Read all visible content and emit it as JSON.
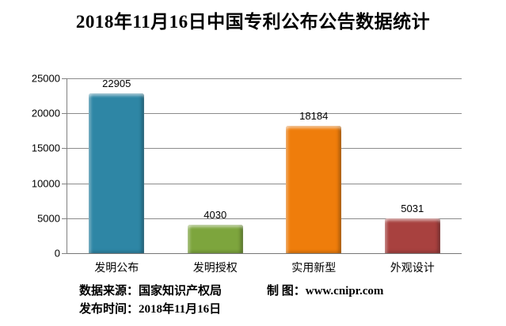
{
  "chart_data": {
    "type": "bar",
    "title": "2018年11月16日中国专利公布公告数据统计",
    "categories": [
      "发明公布",
      "发明授权",
      "实用新型",
      "外观设计"
    ],
    "values": [
      22905,
      4030,
      18184,
      5031
    ],
    "value_labels": [
      "22905",
      "4030",
      "18184",
      "5031"
    ],
    "bar_colors": [
      "#2e86a5",
      "#7da53d",
      "#ef7d0b",
      "#a8413f"
    ],
    "xlabel": "",
    "ylabel": "",
    "ylim": [
      0,
      25000
    ],
    "ytick_values": [
      0,
      5000,
      10000,
      15000,
      20000,
      25000
    ],
    "ytick_labels": [
      "0",
      "5000",
      "10000",
      "15000",
      "20000",
      "25000"
    ],
    "grid": true,
    "gridline_color": "#8c8c8c",
    "legend": false
  },
  "footer": {
    "source": "数据来源：国家知识产权局",
    "credit": "制 图：www.cnipr.com",
    "published": "发布时间：2018年11月16日"
  }
}
